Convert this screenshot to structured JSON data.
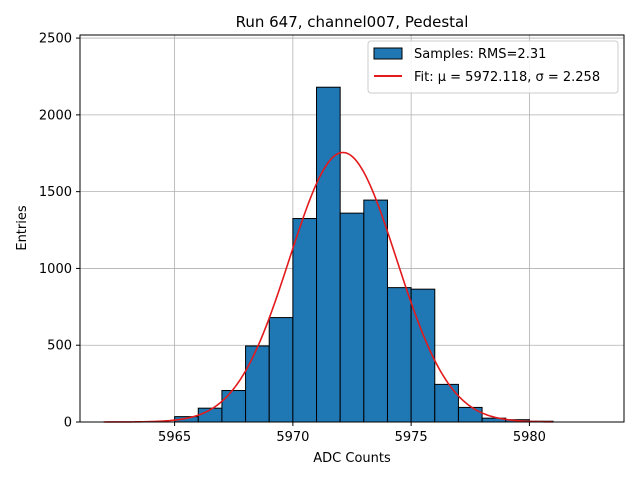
{
  "chart_data": {
    "type": "bar",
    "title": "Run 647, channel007, Pedestal",
    "xlabel": "ADC Counts",
    "ylabel": "Entries",
    "xlim": [
      5961,
      5984
    ],
    "ylim": [
      0,
      2520
    ],
    "xticks": [
      5965,
      5970,
      5975,
      5980
    ],
    "yticks": [
      0,
      500,
      1000,
      1500,
      2000,
      2500
    ],
    "grid": true,
    "legend_position": "top-right",
    "histogram": {
      "name": "Samples: RMS=2.31",
      "color": "#1f77b4",
      "edgecolor": "#000000",
      "bins": [
        {
          "x0": 5962,
          "x1": 5963,
          "value": 0
        },
        {
          "x0": 5963,
          "x1": 5964,
          "value": 0
        },
        {
          "x0": 5964,
          "x1": 5965,
          "value": 0
        },
        {
          "x0": 5965,
          "x1": 5966,
          "value": 35
        },
        {
          "x0": 5966,
          "x1": 5967,
          "value": 90
        },
        {
          "x0": 5967,
          "x1": 5968,
          "value": 205
        },
        {
          "x0": 5968,
          "x1": 5969,
          "value": 495
        },
        {
          "x0": 5969,
          "x1": 5970,
          "value": 680
        },
        {
          "x0": 5970,
          "x1": 5971,
          "value": 1325
        },
        {
          "x0": 5971,
          "x1": 5972,
          "value": 2180
        },
        {
          "x0": 5972,
          "x1": 5973,
          "value": 1360
        },
        {
          "x0": 5973,
          "x1": 5974,
          "value": 1445
        },
        {
          "x0": 5974,
          "x1": 5975,
          "value": 875
        },
        {
          "x0": 5975,
          "x1": 5976,
          "value": 865
        },
        {
          "x0": 5976,
          "x1": 5977,
          "value": 245
        },
        {
          "x0": 5977,
          "x1": 5978,
          "value": 95
        },
        {
          "x0": 5978,
          "x1": 5979,
          "value": 25
        },
        {
          "x0": 5979,
          "x1": 5980,
          "value": 15
        },
        {
          "x0": 5980,
          "x1": 5981,
          "value": 5
        }
      ]
    },
    "fit": {
      "name": "Fit: μ = 5972.118, σ = 2.258",
      "color": "#e31a1c",
      "mu": 5972.118,
      "sigma": 2.258,
      "amplitude": 1755,
      "x_range": [
        5962,
        5981
      ]
    }
  }
}
